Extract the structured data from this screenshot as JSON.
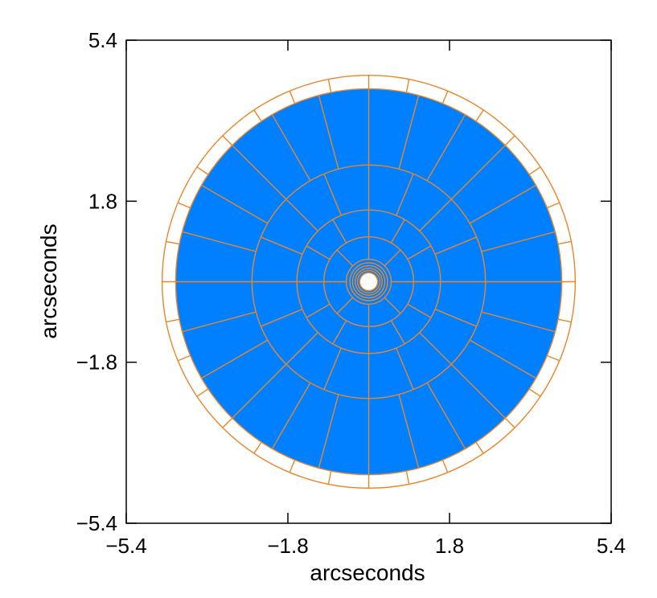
{
  "chart_data": {
    "type": "polar-grid",
    "title": "",
    "xlabel": "arcseconds",
    "ylabel": "arcseconds",
    "xlim": [
      -5.4,
      5.4
    ],
    "ylim": [
      -5.4,
      5.4
    ],
    "xticks": [
      -5.4,
      -1.8,
      1.8,
      5.4
    ],
    "yticks": [
      -5.4,
      -1.8,
      1.8,
      5.4
    ],
    "xtick_labels": [
      "−5.4",
      "−1.8",
      "1.8",
      "5.4"
    ],
    "ytick_labels": [
      "−5.4",
      "−1.8",
      "1.8",
      "5.4"
    ],
    "grid": false,
    "filled_region": {
      "inner_radius": 0.2,
      "outer_radius": 4.3
    },
    "ring_radii": [
      0.2,
      0.25,
      0.3,
      0.36,
      0.42,
      0.5,
      1.0,
      1.6,
      2.6,
      4.3,
      4.6
    ],
    "ring_sectors": [
      {
        "inner": 0.2,
        "outer": 0.5,
        "sectors": 0
      },
      {
        "inner": 0.5,
        "outer": 1.0,
        "sectors": 8
      },
      {
        "inner": 1.0,
        "outer": 1.6,
        "sectors": 12
      },
      {
        "inner": 1.6,
        "outer": 2.6,
        "sectors": 16
      },
      {
        "inner": 2.6,
        "outer": 4.3,
        "sectors": 24
      },
      {
        "inner": 4.3,
        "outer": 4.6,
        "sectors": 32
      }
    ],
    "colors": {
      "fill": "#0080ff",
      "grid_lines": "#e8862a",
      "axes": "#000000"
    }
  }
}
